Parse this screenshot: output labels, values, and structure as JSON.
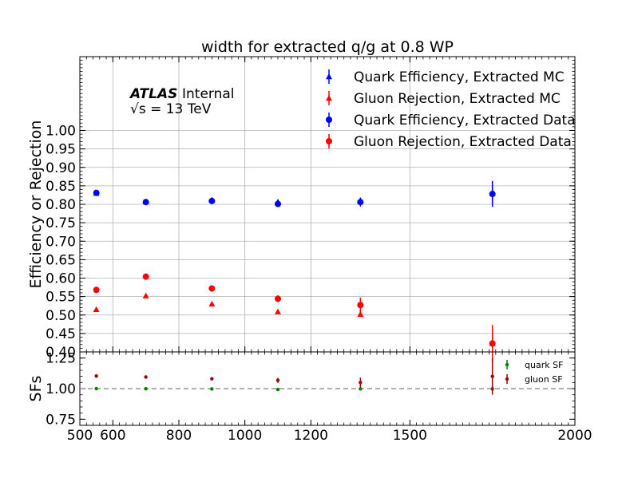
{
  "chart_data": [
    {
      "type": "scatter",
      "title": "width for extracted q/g at 0.8 WP",
      "ylabel": "Efficiency or Rejection",
      "ylim": [
        0.4,
        1.2
      ],
      "yticks": [
        "0.40",
        "0.45",
        "0.50",
        "0.55",
        "0.60",
        "0.65",
        "0.70",
        "0.75",
        "0.80",
        "0.85",
        "0.90",
        "0.95",
        "1.00"
      ],
      "grid": true,
      "annotation": {
        "experiment": "ATLAS",
        "status": "Internal",
        "energy": "√s =  13 TeV"
      },
      "legend_position": "top-right",
      "series": [
        {
          "name": "Quark Efficiency, Extracted MC",
          "marker": "triangle",
          "color": "#0000ff",
          "x": [
            550,
            700,
            900,
            1100,
            1350,
            1750
          ],
          "y": [
            0.83,
            0.807,
            0.812,
            0.806,
            0.808,
            0.83
          ],
          "err": [
            0.005,
            0.004,
            0.005,
            0.007,
            0.01,
            0.03
          ]
        },
        {
          "name": "Gluon Rejection, Extracted MC",
          "marker": "triangle",
          "color": "#ff0000",
          "x": [
            550,
            700,
            900,
            1100,
            1350,
            1750
          ],
          "y": [
            0.515,
            0.552,
            0.53,
            0.509,
            0.502,
            0.423
          ],
          "err": [
            0.004,
            0.004,
            0.004,
            0.005,
            0.006,
            0.01
          ]
        },
        {
          "name": "Quark Efficiency, Extracted Data",
          "marker": "circle",
          "color": "#0000ff",
          "x": [
            550,
            700,
            900,
            1100,
            1350,
            1750
          ],
          "y": [
            0.831,
            0.806,
            0.809,
            0.801,
            0.806,
            0.828
          ],
          "err": [
            0.005,
            0.004,
            0.005,
            0.006,
            0.012,
            0.035
          ]
        },
        {
          "name": "Gluon Rejection, Extracted Data",
          "marker": "circle",
          "color": "#ff0000",
          "x": [
            550,
            700,
            900,
            1100,
            1350,
            1750
          ],
          "y": [
            0.568,
            0.604,
            0.572,
            0.544,
            0.527,
            0.423
          ],
          "err": [
            0.004,
            0.004,
            0.005,
            0.009,
            0.02,
            0.05
          ]
        }
      ]
    },
    {
      "type": "scatter",
      "ylabel": "SFs",
      "ylim": [
        0.7,
        1.3
      ],
      "yticks": [
        "0.75",
        "1.00",
        "1.25"
      ],
      "xlim": [
        500,
        2000
      ],
      "xticks": [
        "500",
        "600",
        "800",
        "1000",
        "1200",
        "1500",
        "2000"
      ],
      "reference_line": 1.0,
      "legend_position": "top-right",
      "series": [
        {
          "name": "quark SF",
          "marker": "dot",
          "color": "#008000",
          "x": [
            550,
            700,
            900,
            1100,
            1350,
            1750
          ],
          "y": [
            1.0,
            0.999,
            0.997,
            0.993,
            0.998,
            0.998
          ],
          "err": [
            0.005,
            0.004,
            0.005,
            0.006,
            0.01,
            0.03
          ]
        },
        {
          "name": "gluon SF",
          "marker": "dot",
          "color": "#a00000",
          "x": [
            550,
            700,
            900,
            1100,
            1350,
            1750
          ],
          "y": [
            1.103,
            1.095,
            1.08,
            1.068,
            1.05,
            1.1
          ],
          "err": [
            0.008,
            0.008,
            0.01,
            0.02,
            0.04,
            0.15
          ]
        }
      ]
    }
  ]
}
